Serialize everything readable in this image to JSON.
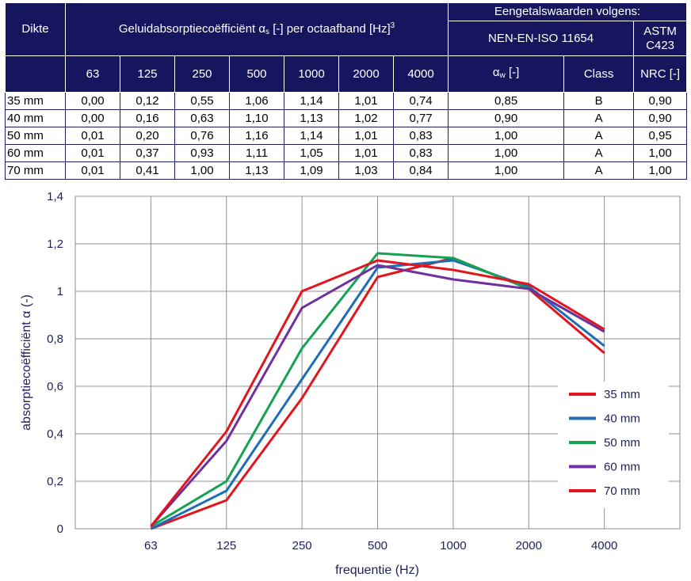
{
  "table": {
    "header": {
      "thickness": "Dikte",
      "coeff_prefix": "Geluidabsorptiecoëfficiënt α",
      "coeff_sub": "s",
      "coeff_suffix": " [-] per octaafband [Hz]",
      "coeff_sup": "3",
      "single_values": "Eengetalswaarden volgens:",
      "nen_standard": "NEN-EN-ISO 11654",
      "astm_standard": "ASTM C423",
      "aw_prefix": "α",
      "aw_sub": "w",
      "aw_suffix": " [-]",
      "class": "Class",
      "nrc": "NRC [-]"
    },
    "frequencies": [
      "63",
      "125",
      "250",
      "500",
      "1000",
      "2000",
      "4000"
    ],
    "rows": [
      {
        "thickness": "35 mm",
        "values": [
          "0,00",
          "0,12",
          "0,55",
          "1,06",
          "1,14",
          "1,01",
          "0,74"
        ],
        "aw": "0,85",
        "class": "B",
        "nrc": "0,90"
      },
      {
        "thickness": "40 mm",
        "values": [
          "0,00",
          "0,16",
          "0,63",
          "1,10",
          "1,13",
          "1,02",
          "0,77"
        ],
        "aw": "0,90",
        "class": "A",
        "nrc": "0,90"
      },
      {
        "thickness": "50 mm",
        "values": [
          "0,01",
          "0,20",
          "0,76",
          "1,16",
          "1,14",
          "1,01",
          "0,83"
        ],
        "aw": "1,00",
        "class": "A",
        "nrc": "0,95"
      },
      {
        "thickness": "60 mm",
        "values": [
          "0,01",
          "0,37",
          "0,93",
          "1,11",
          "1,05",
          "1,01",
          "0,83"
        ],
        "aw": "1,00",
        "class": "A",
        "nrc": "1,00"
      },
      {
        "thickness": "70 mm",
        "values": [
          "0,01",
          "0,41",
          "1,00",
          "1,13",
          "1,09",
          "1,03",
          "0,84"
        ],
        "aw": "1,00",
        "class": "A",
        "nrc": "1,00"
      }
    ]
  },
  "chart_data": {
    "type": "line",
    "title": "",
    "xlabel": "frequentie (Hz)",
    "ylabel": "absorptiecoëfficiënt α (-)",
    "categories": [
      "63",
      "125",
      "250",
      "500",
      "1000",
      "2000",
      "4000"
    ],
    "ylim": [
      0,
      1.4
    ],
    "yticks": [
      0,
      0.2,
      0.4,
      0.6,
      0.8,
      1,
      1.2,
      1.4
    ],
    "ytick_labels": [
      "0",
      "0,2",
      "0,4",
      "0,6",
      "0,8",
      "1",
      "1,2",
      "1,4"
    ],
    "grid": true,
    "legend_position": "right",
    "series": [
      {
        "name": "35 mm",
        "color": "#e2141c",
        "values": [
          0.0,
          0.12,
          0.55,
          1.06,
          1.14,
          1.01,
          0.74
        ]
      },
      {
        "name": "40 mm",
        "color": "#1f6db5",
        "values": [
          0.0,
          0.16,
          0.63,
          1.1,
          1.13,
          1.02,
          0.77
        ]
      },
      {
        "name": "50 mm",
        "color": "#13a351",
        "values": [
          0.01,
          0.2,
          0.76,
          1.16,
          1.14,
          1.01,
          0.83
        ]
      },
      {
        "name": "60 mm",
        "color": "#7030a0",
        "values": [
          0.01,
          0.37,
          0.93,
          1.11,
          1.05,
          1.01,
          0.83
        ]
      },
      {
        "name": "70 mm",
        "color": "#e2141c",
        "values": [
          0.01,
          0.41,
          1.0,
          1.13,
          1.09,
          1.03,
          0.84
        ]
      }
    ]
  }
}
